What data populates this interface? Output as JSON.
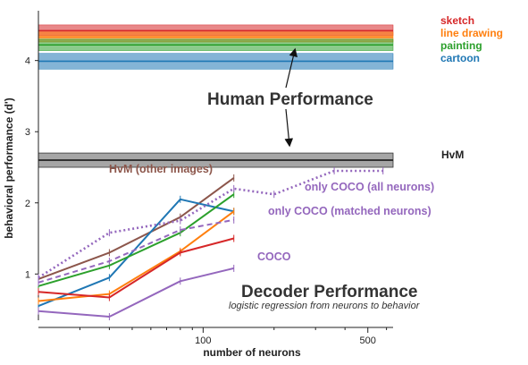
{
  "chart_data": {
    "type": "line",
    "xlabel": "number of neurons",
    "ylabel": "behavioral performance (d')",
    "x_scale": "log",
    "xlim": [
      20,
      640
    ],
    "ylim": [
      0.35,
      4.7
    ],
    "x_ticks": [
      {
        "value": 100,
        "label": "100"
      },
      {
        "value": 500,
        "label": "500"
      }
    ],
    "y_ticks": [
      {
        "value": 1,
        "label": "1"
      },
      {
        "value": 2,
        "label": "2"
      },
      {
        "value": 3,
        "label": "3"
      },
      {
        "value": 4,
        "label": "4"
      }
    ],
    "human_bands": [
      {
        "name": "sketch",
        "y": 4.42,
        "lo": 4.35,
        "hi": 4.5,
        "color": "#d62728"
      },
      {
        "name": "line drawing",
        "y": 4.33,
        "lo": 4.26,
        "hi": 4.4,
        "color": "#ff7f0e"
      },
      {
        "name": "painting",
        "y": 4.22,
        "lo": 4.14,
        "hi": 4.3,
        "color": "#2ca02c"
      },
      {
        "name": "cartoon",
        "y": 3.99,
        "lo": 3.88,
        "hi": 4.1,
        "color": "#1f77b4"
      }
    ],
    "hvm_band": {
      "name": "HvM",
      "y": 2.6,
      "lo": 2.5,
      "hi": 2.7,
      "color": "#444444"
    },
    "series": [
      {
        "name": "HvM (other images)",
        "color": "#8c564b",
        "dash": "solid",
        "x": [
          20,
          40,
          80,
          135
        ],
        "y": [
          0.93,
          1.3,
          1.8,
          2.35
        ]
      },
      {
        "name": "",
        "color": "#1f77b4",
        "dash": "solid",
        "x": [
          20,
          40,
          80,
          135
        ],
        "y": [
          0.55,
          0.95,
          2.05,
          1.88
        ]
      },
      {
        "name": "",
        "color": "#2ca02c",
        "dash": "solid",
        "x": [
          20,
          40,
          80,
          135
        ],
        "y": [
          0.83,
          1.12,
          1.58,
          2.12
        ]
      },
      {
        "name": "",
        "color": "#ff7f0e",
        "dash": "solid",
        "x": [
          20,
          40,
          80,
          135
        ],
        "y": [
          0.62,
          0.72,
          1.32,
          1.88
        ]
      },
      {
        "name": "",
        "color": "#d62728",
        "dash": "solid",
        "x": [
          20,
          40,
          80,
          135
        ],
        "y": [
          0.75,
          0.67,
          1.3,
          1.5
        ]
      },
      {
        "name": "COCO",
        "color": "#9467bd",
        "dash": "solid",
        "x": [
          20,
          40,
          80,
          135
        ],
        "y": [
          0.48,
          0.4,
          0.9,
          1.08
        ]
      },
      {
        "name": "only COCO (matched neurons)",
        "color": "#9467bd",
        "dash": "dashed",
        "x": [
          20,
          40,
          80,
          135
        ],
        "y": [
          0.88,
          1.18,
          1.62,
          1.76
        ]
      },
      {
        "name": "only COCO (all neurons)",
        "color": "#9467bd",
        "dash": "dotted",
        "x": [
          20,
          40,
          80,
          135,
          200,
          360,
          580
        ],
        "y": [
          0.95,
          1.58,
          1.75,
          2.2,
          2.12,
          2.45,
          2.45
        ]
      }
    ],
    "annotations": {
      "human": "Human Performance",
      "decoder": "Decoder Performance",
      "decoder_sub": "logistic regression from neurons to behavior"
    }
  }
}
